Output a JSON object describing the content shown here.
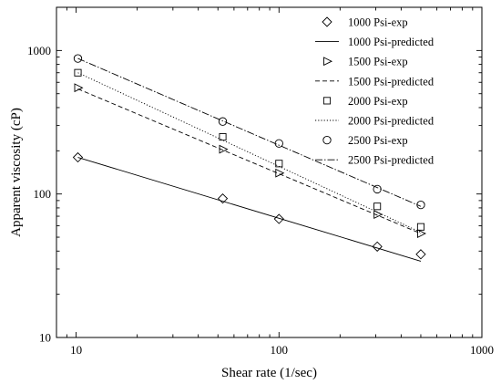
{
  "chart_data": {
    "type": "scatter",
    "title": "",
    "xlabel": "Shear rate (1/sec)",
    "ylabel": "Apparent viscosity (cP)",
    "xscale": "log",
    "yscale": "log",
    "xlim": [
      8,
      1000
    ],
    "ylim": [
      10,
      2000
    ],
    "xticks": [
      10,
      100,
      1000
    ],
    "xtick_labels": [
      "10",
      "100",
      "1000"
    ],
    "yticks": [
      10,
      100,
      1000
    ],
    "ytick_labels": [
      "10",
      "100",
      "1000"
    ],
    "grid": false,
    "legend_position": "top-right",
    "series": [
      {
        "name": "1000 Psi-exp",
        "kind": "marker",
        "marker": "diamond",
        "x": [
          10.2,
          52.8,
          100,
          305,
          500
        ],
        "y": [
          180,
          93,
          67,
          43,
          38
        ]
      },
      {
        "name": "1000 Psi-predicted",
        "kind": "line",
        "line_style": "solid",
        "x": [
          10.2,
          500
        ],
        "y": [
          180,
          34
        ]
      },
      {
        "name": "1500 Psi-exp",
        "kind": "marker",
        "marker": "triangle-right",
        "x": [
          10.2,
          52.8,
          100,
          305,
          500
        ],
        "y": [
          550,
          205,
          140,
          72,
          53
        ]
      },
      {
        "name": "1500 Psi-predicted",
        "kind": "line",
        "line_style": "dashed",
        "x": [
          10.2,
          500
        ],
        "y": [
          540,
          53
        ]
      },
      {
        "name": "2000 Psi-exp",
        "kind": "marker",
        "marker": "square",
        "x": [
          10.2,
          52.8,
          100,
          305,
          500
        ],
        "y": [
          700,
          250,
          163,
          82,
          59
        ]
      },
      {
        "name": "2000 Psi-predicted",
        "kind": "line",
        "line_style": "dotted",
        "x": [
          10.2,
          500
        ],
        "y": [
          700,
          54
        ]
      },
      {
        "name": "2500 Psi-exp",
        "kind": "marker",
        "marker": "circle",
        "x": [
          10.2,
          52.8,
          100,
          305,
          500
        ],
        "y": [
          880,
          320,
          225,
          108,
          84
        ]
      },
      {
        "name": "2500 Psi-predicted",
        "kind": "line",
        "line_style": "dash-dot",
        "x": [
          10.2,
          500
        ],
        "y": [
          880,
          82
        ]
      }
    ]
  }
}
